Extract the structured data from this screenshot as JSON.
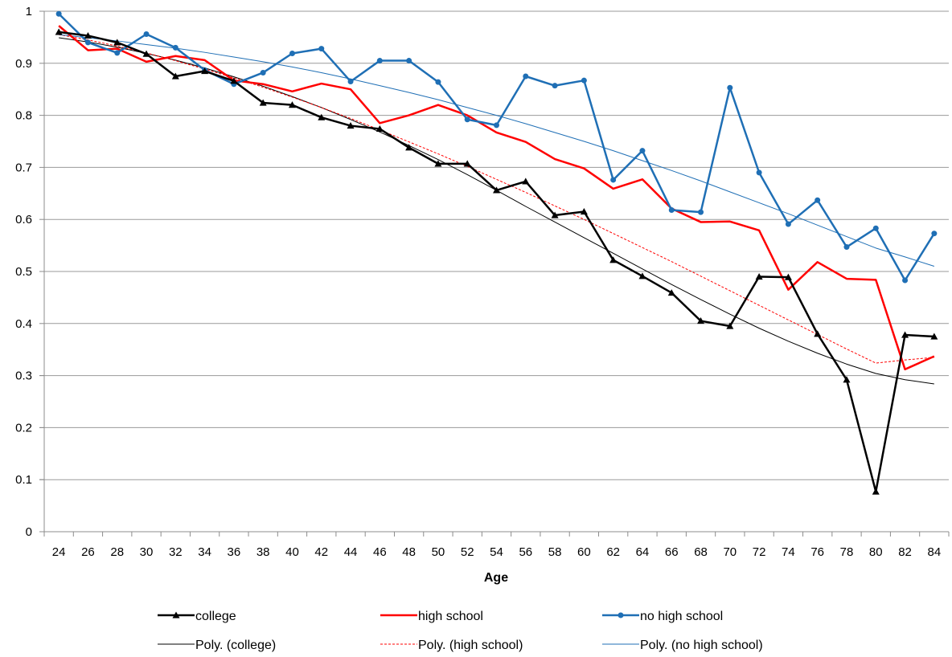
{
  "chart_data": {
    "type": "line",
    "title": "",
    "xlabel": "Age",
    "ylabel": "",
    "x": [
      24,
      26,
      28,
      30,
      32,
      34,
      36,
      38,
      40,
      42,
      44,
      46,
      48,
      50,
      52,
      54,
      56,
      58,
      60,
      62,
      64,
      66,
      68,
      70,
      72,
      74,
      76,
      78,
      80,
      82,
      84
    ],
    "xlim": [
      24,
      84
    ],
    "ylim": [
      0,
      1
    ],
    "yticks": [
      "0",
      "0.1",
      "0.2",
      "0.3",
      "0.4",
      "0.5",
      "0.6",
      "0.7",
      "0.8",
      "0.9",
      "1"
    ],
    "grid": "horizontal",
    "legend_position": "bottom",
    "series": [
      {
        "name": "college",
        "color": "#000000",
        "marker": "triangle",
        "style": "solid",
        "values": [
          0.96,
          0.953,
          0.94,
          0.918,
          0.875,
          0.885,
          0.866,
          0.824,
          0.82,
          0.796,
          0.78,
          0.774,
          0.738,
          0.707,
          0.707,
          0.656,
          0.673,
          0.608,
          0.615,
          0.522,
          0.491,
          0.459,
          0.405,
          0.395,
          0.49,
          0.489,
          0.38,
          0.292,
          0.077,
          0.378,
          0.375
        ]
      },
      {
        "name": "high school",
        "color": "#ff0000",
        "marker": "none",
        "style": "solid",
        "values": [
          0.972,
          0.925,
          0.928,
          0.903,
          0.914,
          0.906,
          0.867,
          0.86,
          0.846,
          0.861,
          0.85,
          0.785,
          0.8,
          0.82,
          0.8,
          0.767,
          0.749,
          0.716,
          0.698,
          0.659,
          0.677,
          0.621,
          0.595,
          0.596,
          0.579,
          0.465,
          0.518,
          0.486,
          0.484,
          0.312,
          0.337
        ]
      },
      {
        "name": "no high school",
        "color": "#1f6fb5",
        "marker": "circle",
        "style": "solid",
        "values": [
          0.995,
          0.94,
          0.92,
          0.956,
          0.93,
          0.887,
          0.86,
          0.882,
          0.919,
          0.928,
          0.865,
          0.905,
          0.905,
          0.864,
          0.792,
          0.781,
          0.875,
          0.857,
          0.867,
          0.676,
          0.732,
          0.618,
          0.614,
          0.853,
          0.69,
          0.591,
          0.637,
          0.547,
          0.583,
          0.483,
          0.573
        ]
      },
      {
        "name": "Poly. (college)",
        "color": "#000000",
        "marker": "none",
        "style": "thin",
        "values": [
          0.949,
          0.941,
          0.931,
          0.919,
          0.906,
          0.891,
          0.874,
          0.856,
          0.836,
          0.815,
          0.792,
          0.768,
          0.742,
          0.715,
          0.686,
          0.656,
          0.625,
          0.595,
          0.565,
          0.535,
          0.505,
          0.475,
          0.446,
          0.418,
          0.391,
          0.366,
          0.343,
          0.322,
          0.304,
          0.292,
          0.284
        ]
      },
      {
        "name": "Poly. (high school)",
        "color": "#ff0000",
        "marker": "none",
        "style": "dotted",
        "values": [
          0.955,
          0.945,
          0.933,
          0.92,
          0.905,
          0.889,
          0.872,
          0.854,
          0.835,
          0.815,
          0.794,
          0.772,
          0.749,
          0.726,
          0.702,
          0.677,
          0.652,
          0.626,
          0.6,
          0.573,
          0.546,
          0.519,
          0.491,
          0.463,
          0.435,
          0.407,
          0.379,
          0.351,
          0.324,
          0.33,
          0.335
        ]
      },
      {
        "name": "Poly. (no high school)",
        "color": "#1f6fb5",
        "marker": "none",
        "style": "thin",
        "values": [
          0.955,
          0.949,
          0.943,
          0.936,
          0.929,
          0.921,
          0.912,
          0.903,
          0.893,
          0.882,
          0.87,
          0.857,
          0.844,
          0.83,
          0.815,
          0.8,
          0.784,
          0.767,
          0.75,
          0.732,
          0.713,
          0.694,
          0.674,
          0.653,
          0.632,
          0.611,
          0.589,
          0.567,
          0.545,
          0.528,
          0.51
        ]
      }
    ]
  }
}
